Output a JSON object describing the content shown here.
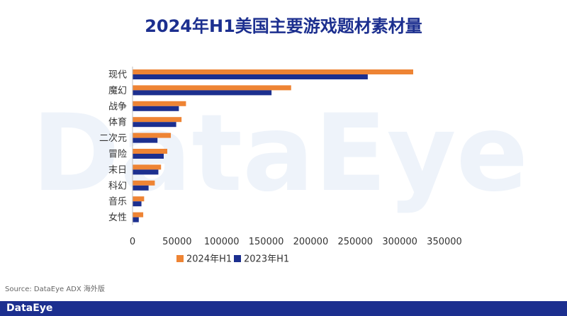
{
  "chart_data": {
    "type": "bar",
    "orientation": "horizontal",
    "title": "2024年H1美国主要游戏题材素材量",
    "categories": [
      "现代",
      "魔幻",
      "战争",
      "体育",
      "二次元",
      "冒险",
      "末日",
      "科幻",
      "音乐",
      "女性"
    ],
    "series": [
      {
        "name": "2024年H1",
        "color": "#ee8434",
        "values": [
          315000,
          178000,
          60000,
          55000,
          43000,
          39000,
          32000,
          25000,
          13000,
          12000
        ]
      },
      {
        "name": "2023年H1",
        "color": "#1c2f8f",
        "values": [
          264000,
          156000,
          52000,
          49000,
          28000,
          35000,
          29000,
          18000,
          10000,
          7000
        ]
      }
    ],
    "xlim": [
      0,
      350000
    ],
    "xticks": [
      0,
      50000,
      100000,
      150000,
      200000,
      250000,
      300000,
      350000
    ],
    "xtick_labels": [
      "0",
      "50000",
      "100000",
      "150000",
      "200000",
      "250000",
      "300000",
      "350000"
    ],
    "legend_position": "bottom",
    "grid": false
  },
  "watermark": "DataEye",
  "source": "Source: DataEye ADX 海外版",
  "footer_brand": "DataEye"
}
